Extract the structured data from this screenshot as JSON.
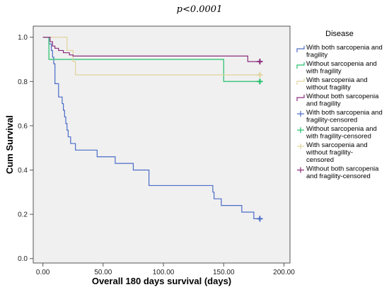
{
  "annotation": "p<0.0001",
  "chart_data": {
    "type": "line",
    "step": true,
    "xlabel": "Overall 180 days survival (days)",
    "ylabel": "Cum Survival",
    "xlim": [
      -8,
      205
    ],
    "ylim": [
      -0.02,
      1.05
    ],
    "xticks": [
      0,
      50,
      100,
      150,
      200
    ],
    "xtick_labels": [
      "0.00",
      "50.00",
      "100.00",
      "150.00",
      "200.00"
    ],
    "yticks": [
      0,
      0.2,
      0.4,
      0.6,
      0.8,
      1.0
    ],
    "ytick_labels": [
      "0.0",
      "0.2",
      "0.4",
      "0.6",
      "0.8",
      "1.0"
    ],
    "grid": false,
    "legend_title": "Disease",
    "legend_placement": "right",
    "series": [
      {
        "name": "With both sarcopenia and fragility",
        "color": "#4a6cc8",
        "x": [
          0,
          5,
          7,
          8,
          9,
          10,
          13,
          16,
          17,
          18,
          19,
          20,
          21,
          23,
          25,
          27,
          30,
          45,
          60,
          75,
          88,
          140,
          141,
          142,
          148,
          150,
          165,
          175,
          180
        ],
        "y": [
          1.0,
          0.97,
          0.94,
          0.91,
          0.88,
          0.79,
          0.73,
          0.7,
          0.67,
          0.64,
          0.61,
          0.58,
          0.55,
          0.52,
          0.52,
          0.49,
          0.49,
          0.46,
          0.43,
          0.4,
          0.33,
          0.33,
          0.3,
          0.27,
          0.24,
          0.24,
          0.21,
          0.18,
          0.18
        ]
      },
      {
        "name": "Without sarcopenia and with fragility",
        "color": "#22c06a",
        "x": [
          0,
          4,
          5,
          150,
          180
        ],
        "y": [
          1.0,
          1.0,
          0.9,
          0.8,
          0.8
        ]
      },
      {
        "name": "With sarcopenia and without fragility",
        "color": "#e0d49c",
        "x": [
          0,
          15,
          20,
          25,
          27,
          180
        ],
        "y": [
          1.0,
          1.0,
          0.94,
          0.89,
          0.83,
          0.83
        ]
      },
      {
        "name": "Without both sarcopenia and fragility",
        "color": "#8b2c7d",
        "x": [
          0,
          6,
          8,
          10,
          13,
          17,
          22,
          25,
          170,
          180
        ],
        "y": [
          1.0,
          0.98,
          0.96,
          0.95,
          0.94,
          0.93,
          0.92,
          0.915,
          0.89,
          0.89
        ]
      }
    ],
    "censored": [
      {
        "name": "With both sarcopenia and fragility-censored",
        "color": "#4a6cc8",
        "x": 180,
        "y": 0.18
      },
      {
        "name": "Without sarcopenia and with fragility-censored",
        "color": "#22c06a",
        "x": 180,
        "y": 0.8
      },
      {
        "name": "With sarcopenia and without fragility-censored",
        "color": "#e0d49c",
        "x": 180,
        "y": 0.83
      },
      {
        "name": "Without both sarcopenia and fragility-censored",
        "color": "#8b2c7d",
        "x": 180,
        "y": 0.89
      }
    ],
    "legend": [
      {
        "lines": [
          "With both sarcopenia and",
          "fragility"
        ],
        "color": "#4a6cc8",
        "marker": "step"
      },
      {
        "lines": [
          "Without sarcopenia and",
          "with fragility"
        ],
        "color": "#22c06a",
        "marker": "step"
      },
      {
        "lines": [
          "With sarcopenia and",
          "without fragility"
        ],
        "color": "#e0d49c",
        "marker": "step"
      },
      {
        "lines": [
          "Without both sarcopenia",
          "and fragility"
        ],
        "color": "#8b2c7d",
        "marker": "step"
      },
      {
        "lines": [
          "With both sarcopenia and",
          "fragility-censored"
        ],
        "color": "#4a6cc8",
        "marker": "plus"
      },
      {
        "lines": [
          "Without sarcopenia and",
          "with fragility-censored"
        ],
        "color": "#22c06a",
        "marker": "plus"
      },
      {
        "lines": [
          "With sarcopenia and",
          "without fragility-",
          "censored"
        ],
        "color": "#e0d49c",
        "marker": "plus"
      },
      {
        "lines": [
          "Without both sarcopenia",
          "and fragility-censored"
        ],
        "color": "#8b2c7d",
        "marker": "plus"
      }
    ],
    "colors": {
      "plot_background": "#f0f0f0",
      "axis": "#555555"
    }
  }
}
